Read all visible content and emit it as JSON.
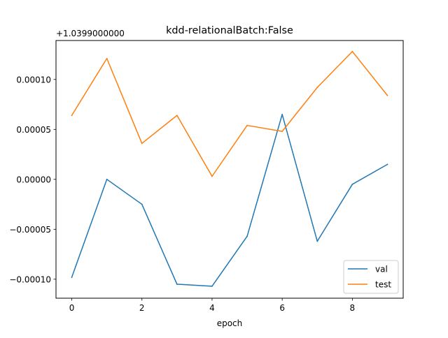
{
  "chart_data": {
    "type": "line",
    "title": "kdd-relationalBatch:False",
    "xlabel": "epoch",
    "ylabel": "",
    "offset_label": "+1.0399000000",
    "x": [
      0,
      1,
      2,
      3,
      4,
      5,
      6,
      7,
      8,
      9
    ],
    "xlim": [
      -0.45,
      9.45
    ],
    "ylim": [
      -0.000119,
      0.000139
    ],
    "xticks": [
      0,
      2,
      4,
      6,
      8
    ],
    "xtick_labels": [
      "0",
      "2",
      "4",
      "6",
      "8"
    ],
    "yticks": [
      -0.0001,
      -5e-05,
      0.0,
      5e-05,
      0.0001
    ],
    "ytick_labels": [
      "−0.00010",
      "−0.00005",
      "0.00000",
      "0.00005",
      "0.00010"
    ],
    "grid": false,
    "legend_position": "lower-right",
    "series": [
      {
        "name": "val",
        "color": "#1f77b4",
        "values": [
          -9.8e-05,
          0.0,
          -2.5e-05,
          -0.000105,
          -0.000107,
          -5.7e-05,
          6.5e-05,
          -6.2e-05,
          -5e-06,
          1.5e-05
        ]
      },
      {
        "name": "test",
        "color": "#ff7f0e",
        "values": [
          6.4e-05,
          0.000121,
          3.6e-05,
          6.4e-05,
          3e-06,
          5.4e-05,
          4.8e-05,
          9.2e-05,
          0.000128,
          8.4e-05
        ]
      }
    ]
  }
}
